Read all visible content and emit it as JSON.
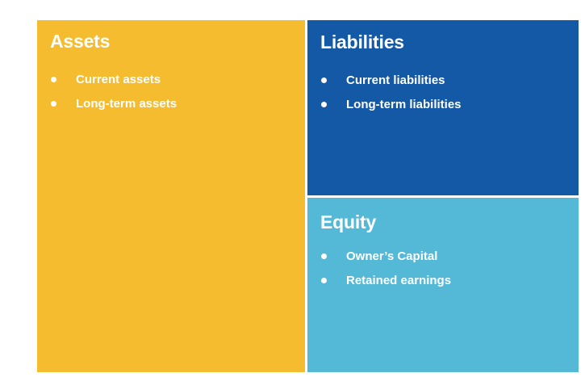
{
  "colors": {
    "assets": "#F5BC2F",
    "liabilities": "#1459A6",
    "equity": "#53B9D7",
    "text": "#FFFFFF"
  },
  "assets": {
    "title": "Assets",
    "items": [
      "Current assets",
      "Long-term assets"
    ]
  },
  "liabilities": {
    "title": "Liabilities",
    "items": [
      "Current liabilities",
      "Long-term liabilities"
    ]
  },
  "equity": {
    "title": "Equity",
    "items": [
      "Owner’s Capital",
      "Retained earnings"
    ]
  }
}
